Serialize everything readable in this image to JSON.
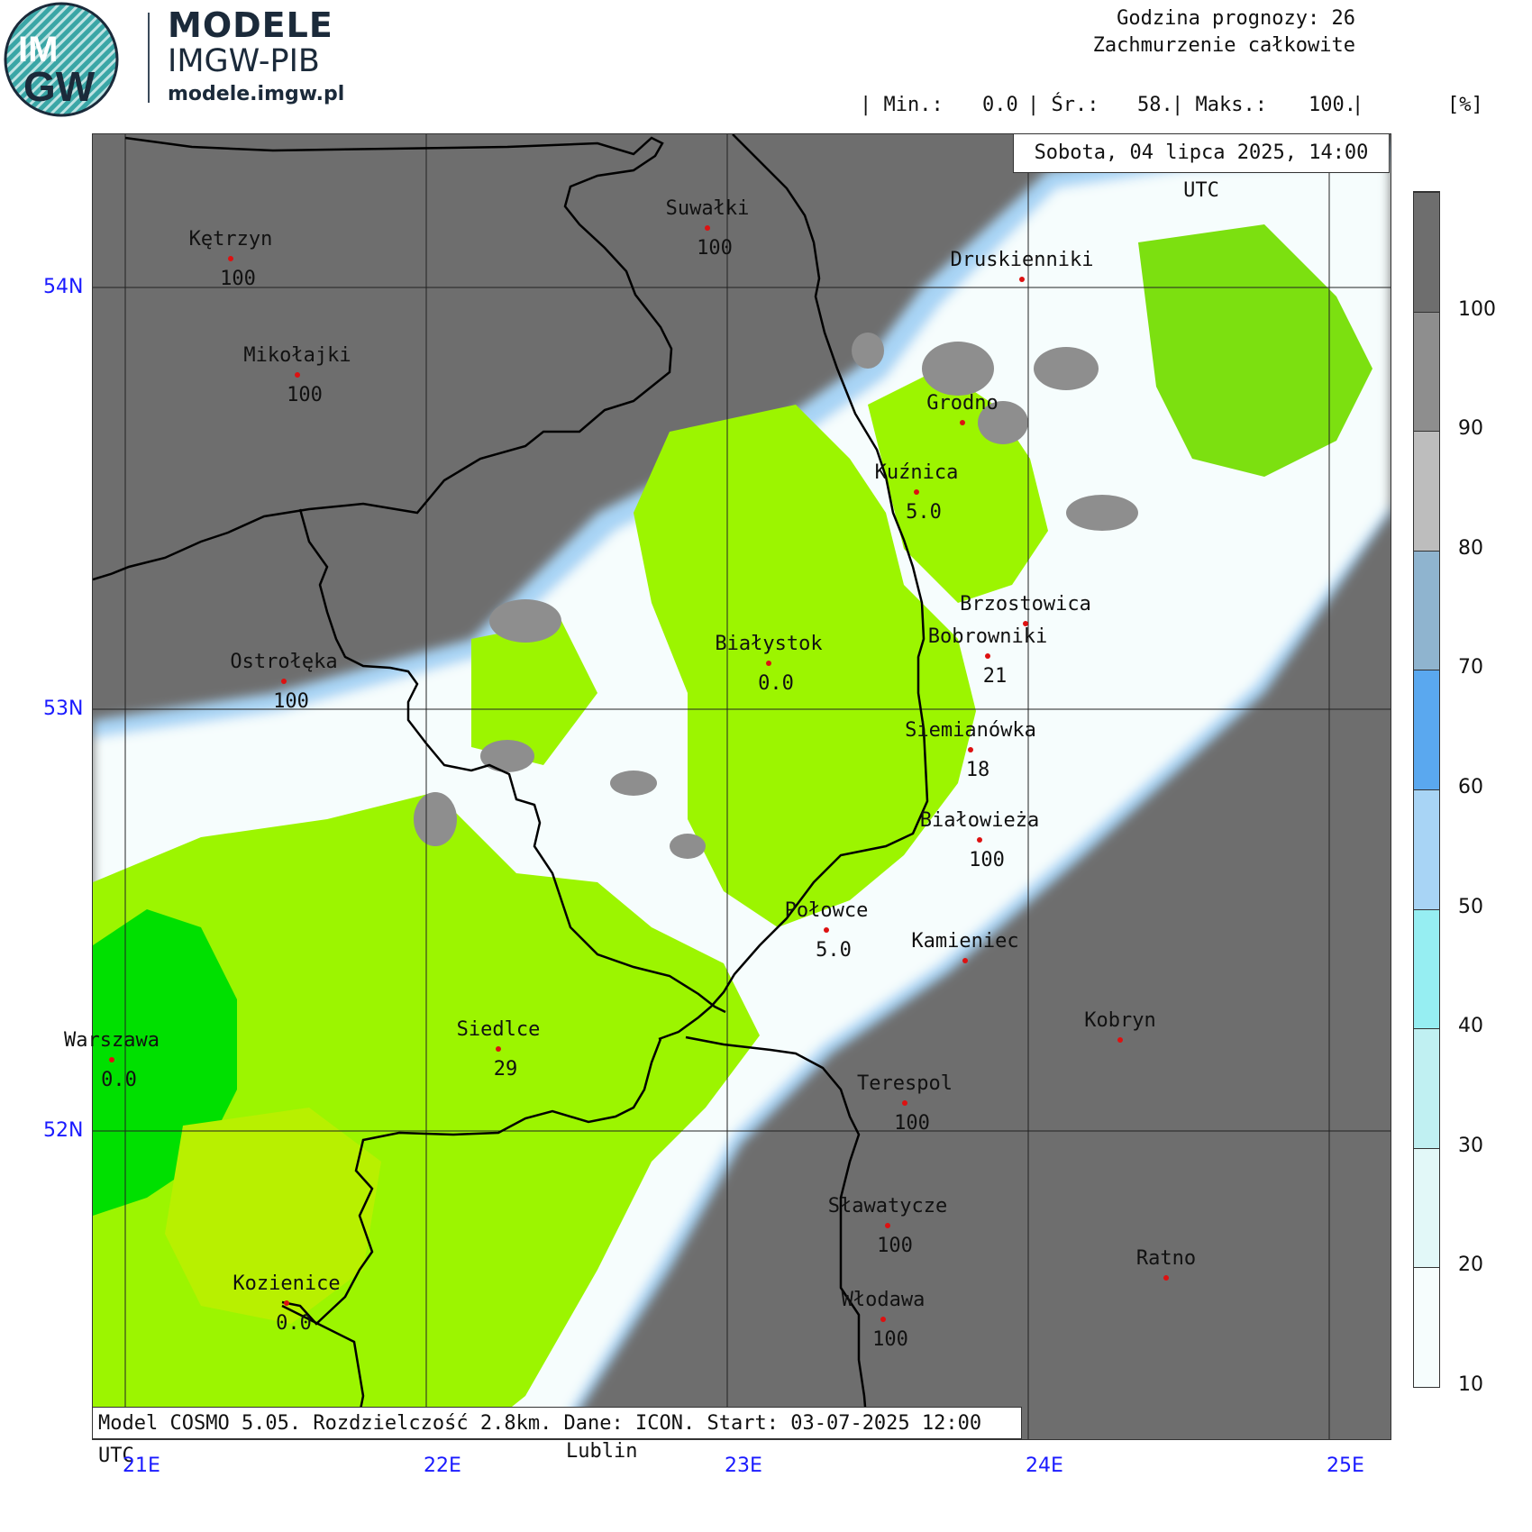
{
  "logo": {
    "mark": "IMGW",
    "title": "MODELE",
    "subtitle": "IMGW-PIB",
    "url": "modele.imgw.pl"
  },
  "header": {
    "forecast_hour": "Godzina prognozy: 26",
    "variable": "Zachmurzenie całkowite",
    "min_label": "| Min.:",
    "min_value": "0.0",
    "avg_label": "| Śr.:",
    "avg_value": "58.",
    "max_label": "| Maks.:",
    "max_value": "100.",
    "max_sep": "|",
    "unit": "[%]"
  },
  "date_box": "Sobota, 04 lipca 2025, 14:00 UTC",
  "model_box": "Model COSMO 5.05. Rozdzielczość 2.8km. Dane: ICON. Start: 03-07-2025 12:00 UTC",
  "extra_label": "Lublin",
  "lat_labels": [
    "54N",
    "53N",
    "52N"
  ],
  "lon_labels": [
    "21E",
    "22E",
    "23E",
    "24E",
    "25E"
  ],
  "legend": {
    "labels": [
      "100",
      "90",
      "80",
      "70",
      "60",
      "50",
      "40",
      "30",
      "20",
      "10"
    ],
    "colors": [
      "#6e6e6e",
      "#8e8e8e",
      "#bdbdbd",
      "#8fb4cf",
      "#5aa8ef",
      "#a8d4f5",
      "#96eef2",
      "#c0f0f2",
      "#e2f8f8",
      "#f6fdfd"
    ]
  },
  "cities": [
    {
      "name": "Kętrzyn",
      "value": "100"
    },
    {
      "name": "Suwałki",
      "value": "100"
    },
    {
      "name": "Druskienniki",
      "value": ""
    },
    {
      "name": "Mikołajki",
      "value": "100"
    },
    {
      "name": "Grodno",
      "value": ""
    },
    {
      "name": "Kuźnica",
      "value": "5.0"
    },
    {
      "name": "Brzostowica",
      "value": ""
    },
    {
      "name": "Bobrowniki",
      "value": "21"
    },
    {
      "name": "Białystok",
      "value": "0.0"
    },
    {
      "name": "Ostrołęka",
      "value": "100"
    },
    {
      "name": "Siemianówka",
      "value": "18"
    },
    {
      "name": "Białowieża",
      "value": "100"
    },
    {
      "name": "Połowce",
      "value": "5.0"
    },
    {
      "name": "Kamieniec",
      "value": ""
    },
    {
      "name": "Kobryn",
      "value": ""
    },
    {
      "name": "Siedlce",
      "value": "29"
    },
    {
      "name": "Warszawa",
      "value": "0.0"
    },
    {
      "name": "Terespol",
      "value": "100"
    },
    {
      "name": "Sławatycze",
      "value": "100"
    },
    {
      "name": "Ratno",
      "value": ""
    },
    {
      "name": "Kozienice",
      "value": "0.0"
    },
    {
      "name": "Włodawa",
      "value": "100"
    }
  ]
}
